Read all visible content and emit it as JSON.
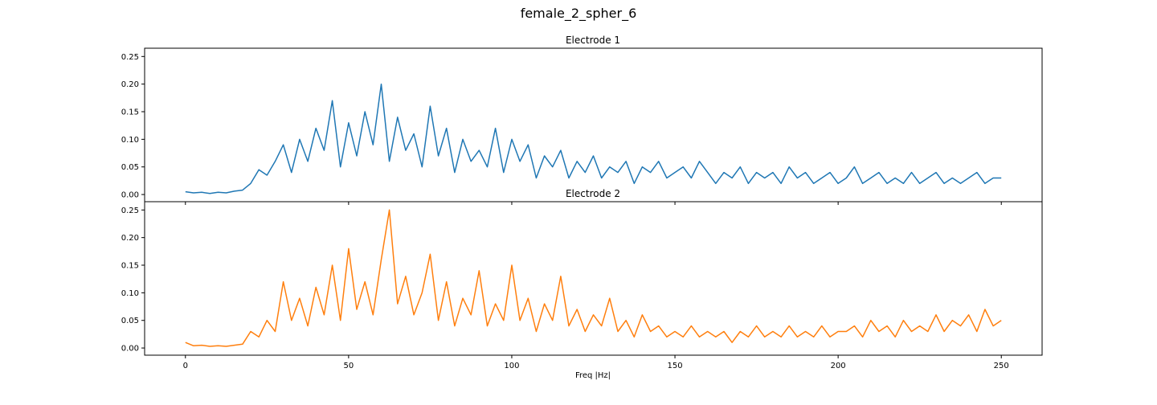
{
  "figure": {
    "suptitle": "female_2_spher_6",
    "xlabel": "Freq |Hz|"
  },
  "chart_data": [
    {
      "type": "line",
      "title": "Electrode 1",
      "xlabel": "",
      "ylabel": "",
      "xlim": [
        -12.5,
        262.5
      ],
      "ylim": [
        -0.013,
        0.265
      ],
      "xticks": [
        0,
        50,
        100,
        150,
        200,
        250
      ],
      "yticks": [
        0.0,
        0.05,
        0.1,
        0.15,
        0.2,
        0.25
      ],
      "ytick_labels": [
        "0.00",
        "0.05",
        "0.10",
        "0.15",
        "0.20",
        "0.25"
      ],
      "show_xtick_labels": false,
      "grid": false,
      "color": "#1f77b4",
      "series": [
        {
          "x": [
            0,
            2.5,
            5,
            7.5,
            10,
            12.5,
            15,
            17.5,
            20,
            22.5,
            25,
            27.5,
            30,
            32.5,
            35,
            37.5,
            40,
            42.5,
            45,
            47.5,
            50,
            52.5,
            55,
            57.5,
            60,
            62.5,
            65,
            67.5,
            70,
            72.5,
            75,
            77.5,
            80,
            82.5,
            85,
            87.5,
            90,
            92.5,
            95,
            97.5,
            100,
            102.5,
            105,
            107.5,
            110,
            112.5,
            115,
            117.5,
            120,
            122.5,
            125,
            127.5,
            130,
            132.5,
            135,
            137.5,
            140,
            142.5,
            145,
            147.5,
            150,
            152.5,
            155,
            157.5,
            160,
            162.5,
            165,
            167.5,
            170,
            172.5,
            175,
            177.5,
            180,
            182.5,
            185,
            187.5,
            190,
            192.5,
            195,
            197.5,
            200,
            202.5,
            205,
            207.5,
            210,
            212.5,
            215,
            217.5,
            220,
            222.5,
            225,
            227.5,
            230,
            232.5,
            235,
            237.5,
            240,
            242.5,
            245,
            247.5,
            250
          ],
          "y": [
            0.005,
            0.003,
            0.004,
            0.002,
            0.004,
            0.003,
            0.006,
            0.008,
            0.02,
            0.045,
            0.035,
            0.06,
            0.09,
            0.04,
            0.1,
            0.06,
            0.12,
            0.08,
            0.17,
            0.05,
            0.13,
            0.07,
            0.15,
            0.09,
            0.2,
            0.06,
            0.14,
            0.08,
            0.11,
            0.05,
            0.16,
            0.07,
            0.12,
            0.04,
            0.1,
            0.06,
            0.08,
            0.05,
            0.12,
            0.04,
            0.1,
            0.06,
            0.09,
            0.03,
            0.07,
            0.05,
            0.08,
            0.03,
            0.06,
            0.04,
            0.07,
            0.03,
            0.05,
            0.04,
            0.06,
            0.02,
            0.05,
            0.04,
            0.06,
            0.03,
            0.04,
            0.05,
            0.03,
            0.06,
            0.04,
            0.02,
            0.04,
            0.03,
            0.05,
            0.02,
            0.04,
            0.03,
            0.04,
            0.02,
            0.05,
            0.03,
            0.04,
            0.02,
            0.03,
            0.04,
            0.02,
            0.03,
            0.05,
            0.02,
            0.03,
            0.04,
            0.02,
            0.03,
            0.02,
            0.04,
            0.02,
            0.03,
            0.04,
            0.02,
            0.03,
            0.02,
            0.03,
            0.04,
            0.02,
            0.03,
            0.03
          ]
        }
      ]
    },
    {
      "type": "line",
      "title": "Electrode 2",
      "xlabel": "Freq |Hz|",
      "ylabel": "",
      "xlim": [
        -12.5,
        262.5
      ],
      "ylim": [
        -0.013,
        0.265
      ],
      "xticks": [
        0,
        50,
        100,
        150,
        200,
        250
      ],
      "yticks": [
        0.0,
        0.05,
        0.1,
        0.15,
        0.2,
        0.25
      ],
      "ytick_labels": [
        "0.00",
        "0.05",
        "0.10",
        "0.15",
        "0.20",
        "0.25"
      ],
      "show_xtick_labels": true,
      "grid": false,
      "color": "#ff7f0e",
      "series": [
        {
          "x": [
            0,
            2.5,
            5,
            7.5,
            10,
            12.5,
            15,
            17.5,
            20,
            22.5,
            25,
            27.5,
            30,
            32.5,
            35,
            37.5,
            40,
            42.5,
            45,
            47.5,
            50,
            52.5,
            55,
            57.5,
            60,
            62.5,
            65,
            67.5,
            70,
            72.5,
            75,
            77.5,
            80,
            82.5,
            85,
            87.5,
            90,
            92.5,
            95,
            97.5,
            100,
            102.5,
            105,
            107.5,
            110,
            112.5,
            115,
            117.5,
            120,
            122.5,
            125,
            127.5,
            130,
            132.5,
            135,
            137.5,
            140,
            142.5,
            145,
            147.5,
            150,
            152.5,
            155,
            157.5,
            160,
            162.5,
            165,
            167.5,
            170,
            172.5,
            175,
            177.5,
            180,
            182.5,
            185,
            187.5,
            190,
            192.5,
            195,
            197.5,
            200,
            202.5,
            205,
            207.5,
            210,
            212.5,
            215,
            217.5,
            220,
            222.5,
            225,
            227.5,
            230,
            232.5,
            235,
            237.5,
            240,
            242.5,
            245,
            247.5,
            250
          ],
          "y": [
            0.01,
            0.004,
            0.005,
            0.003,
            0.004,
            0.003,
            0.005,
            0.007,
            0.03,
            0.02,
            0.05,
            0.03,
            0.12,
            0.05,
            0.09,
            0.04,
            0.11,
            0.06,
            0.15,
            0.05,
            0.18,
            0.07,
            0.12,
            0.06,
            0.16,
            0.25,
            0.08,
            0.13,
            0.06,
            0.1,
            0.17,
            0.05,
            0.12,
            0.04,
            0.09,
            0.06,
            0.14,
            0.04,
            0.08,
            0.05,
            0.15,
            0.05,
            0.09,
            0.03,
            0.08,
            0.05,
            0.13,
            0.04,
            0.07,
            0.03,
            0.06,
            0.04,
            0.09,
            0.03,
            0.05,
            0.02,
            0.06,
            0.03,
            0.04,
            0.02,
            0.03,
            0.02,
            0.04,
            0.02,
            0.03,
            0.02,
            0.03,
            0.01,
            0.03,
            0.02,
            0.04,
            0.02,
            0.03,
            0.02,
            0.04,
            0.02,
            0.03,
            0.02,
            0.04,
            0.02,
            0.03,
            0.03,
            0.04,
            0.02,
            0.05,
            0.03,
            0.04,
            0.02,
            0.05,
            0.03,
            0.04,
            0.03,
            0.06,
            0.03,
            0.05,
            0.04,
            0.06,
            0.03,
            0.07,
            0.04,
            0.05
          ]
        }
      ]
    }
  ]
}
